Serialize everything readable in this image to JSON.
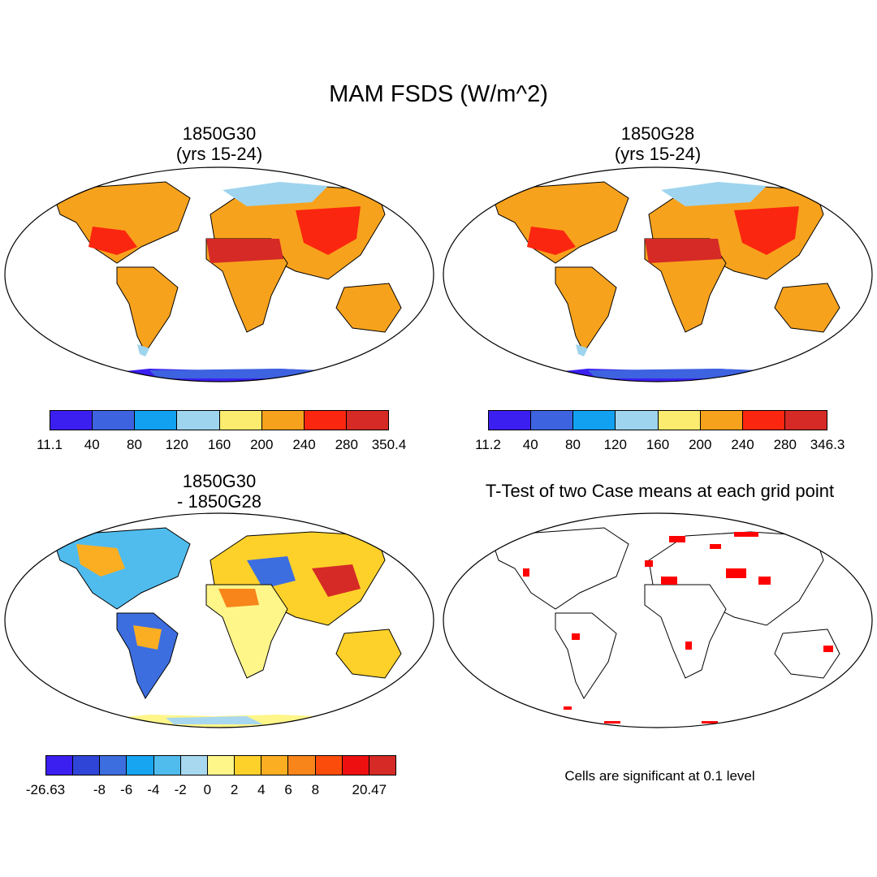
{
  "title": "MAM FSDS (W/m^2)",
  "panels": {
    "top_left": {
      "title": "1850G30\n(yrs 15-24)"
    },
    "top_right": {
      "title": "1850G28\n(yrs 15-24)"
    },
    "bottom_left": {
      "title": "1850G30\n- 1850G28"
    },
    "bottom_right": {
      "title": "T-Test of two Case means at each grid point"
    }
  },
  "colorbars": {
    "top_left": {
      "colors": [
        "#3b1ff0",
        "#3d63e0",
        "#12a0f0",
        "#9ed4ee",
        "#fbeb6e",
        "#f7a21d",
        "#fb260f",
        "#d52a26"
      ],
      "labels": [
        "11.1",
        "40",
        "80",
        "120",
        "160",
        "200",
        "240",
        "280",
        "350.4"
      ]
    },
    "top_right": {
      "colors": [
        "#3b1ff0",
        "#3d63e0",
        "#12a0f0",
        "#9ed4ee",
        "#fbeb6e",
        "#f7a21d",
        "#fb260f",
        "#d52a26"
      ],
      "labels": [
        "11.2",
        "40",
        "80",
        "120",
        "160",
        "200",
        "240",
        "280",
        "346.3"
      ]
    },
    "bottom_left": {
      "colors": [
        "#3b1ff0",
        "#2f45d8",
        "#3d6ee0",
        "#17a5f2",
        "#50bcee",
        "#a8d8f0",
        "#fff68a",
        "#fed12a",
        "#fbae22",
        "#f7851a",
        "#fb4c0b",
        "#ee1010",
        "#d52a26"
      ],
      "labels": [
        "-26.63",
        "",
        "-8",
        "-6",
        "-4",
        "-2",
        "0",
        "2",
        "4",
        "6",
        "8",
        "",
        "20.47"
      ]
    }
  },
  "note": "Cells are significant at 0.1 level"
}
